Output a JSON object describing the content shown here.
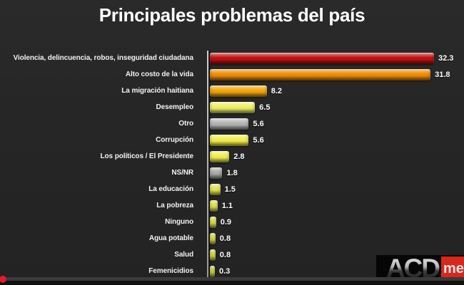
{
  "header": {
    "title": "Principales problemas del país"
  },
  "chart_data": {
    "type": "bar",
    "orientation": "horizontal",
    "title": "Principales problemas del país",
    "categories": [
      "Violencia, delincuencia, robos, inseguridad ciudadana",
      "Alto costo de la vida",
      "La migración haitiana",
      "Desempleo",
      "Otro",
      "Corrupción",
      "Los políticos / El Presidente",
      "NS/NR",
      "La educación",
      "La pobreza",
      "Ninguno",
      "Agua potable",
      "Salud",
      "Femenicidios"
    ],
    "values": [
      32.3,
      31.8,
      8.2,
      6.5,
      5.6,
      5.6,
      2.8,
      1.8,
      1.5,
      1.1,
      0.9,
      0.8,
      0.8,
      0.3
    ],
    "value_labels": [
      "32.3",
      "31.8",
      "8.2",
      "6.5",
      "5.6",
      "5.6",
      "2.8",
      "1.8",
      "1.5",
      "1.1",
      "0.9",
      "0.8",
      "0.8",
      "0.3"
    ],
    "bar_colors": [
      "#c31212",
      "#f08d05",
      "#f2a70c",
      "#eef065",
      "#b5b5b5",
      "#f2ef4a",
      "#f0ed52",
      "#ababab",
      "#e3e455",
      "#e0e252",
      "#dade4e",
      "#d8dc4c",
      "#d6da4a",
      "#cdd34a"
    ],
    "xlim": [
      0,
      33.5
    ],
    "grid": false,
    "legend": false,
    "value_labels_shown": true
  },
  "watermark": {
    "text_main": "ACD",
    "text_accent": "me",
    "accent_color": "#d8271c"
  },
  "colors": {
    "background": "#262626",
    "title_text": "#ffffff",
    "label_text": "#f2f2f2",
    "axis_line": "#b5b5b5",
    "playhead_red": "#e8192c",
    "scrubber_track": "#3a3a3a"
  }
}
